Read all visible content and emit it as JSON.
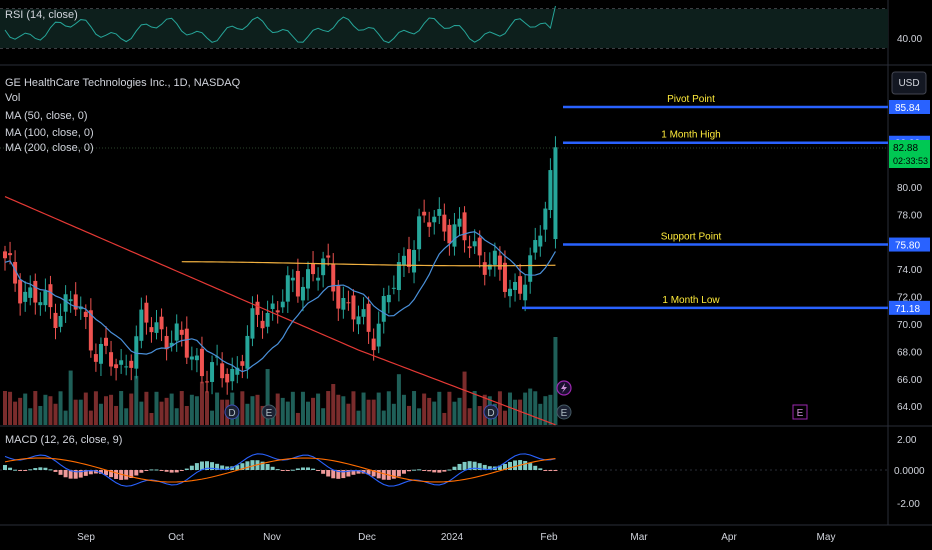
{
  "panes": {
    "rsi": {
      "label": "RSI (14, close)",
      "tick": "40.00"
    },
    "macd": {
      "label": "MACD (12, 26, close, 9)",
      "ticks": [
        "2.00",
        "0.0000",
        "-2.00"
      ]
    }
  },
  "legend": {
    "title": "GE HealthCare Technologies Inc., 1D, NASDAQ",
    "vol": "Vol",
    "ma50": "MA (50, close, 0)",
    "ma100": "MA (100, close, 0)",
    "ma200": "MA (200, close, 0)"
  },
  "currency_button": "USD",
  "colors": {
    "up": "#26a69a",
    "down": "#ef5350",
    "ma50": "#4a90d9",
    "ma100": "#e53935",
    "ma200": "#f0b040",
    "level": "#2962ff",
    "level_text": "#ffeb3b",
    "price_tag": "#00c853"
  },
  "levels": [
    {
      "name": "Pivot Point",
      "value": "85.84"
    },
    {
      "name": "1 Month High",
      "value": "83.23"
    },
    {
      "name": "Support Point",
      "value": "75.80"
    },
    {
      "name": "1 Month Low",
      "value": "71.18"
    }
  ],
  "last_price": {
    "value": "82.88",
    "countdown": "02:33:53"
  },
  "price_ticks": [
    "80.00",
    "78.00",
    "74.00",
    "72.00",
    "70.00",
    "68.00",
    "66.00",
    "64.00"
  ],
  "x_ticks": [
    "Sep",
    "Oct",
    "Nov",
    "Dec",
    "2024",
    "Feb",
    "Mar",
    "Apr",
    "May"
  ],
  "markers": [
    {
      "type": "D",
      "kind": "dividend"
    },
    {
      "type": "E",
      "kind": "earnings"
    },
    {
      "type": "D",
      "kind": "dividend"
    },
    {
      "type": "E",
      "kind": "earnings"
    },
    {
      "type": "E",
      "kind": "earnings-upcoming"
    }
  ],
  "chart_data": {
    "type": "candlestick",
    "title": "GE HealthCare Technologies Inc., 1D, NASDAQ",
    "x_range": [
      "Aug 2023",
      "May 2024"
    ],
    "y_range": [
      63,
      87
    ],
    "close_series_approx": [
      [
        "2023-08-21",
        74.2
      ],
      [
        "2023-08-28",
        72.2
      ],
      [
        "2023-09-05",
        71.0
      ],
      [
        "2023-09-12",
        71.6
      ],
      [
        "2023-09-19",
        68.3
      ],
      [
        "2023-09-26",
        66.4
      ],
      [
        "2023-10-03",
        70.0
      ],
      [
        "2023-10-10",
        69.5
      ],
      [
        "2023-10-17",
        68.0
      ],
      [
        "2023-10-24",
        66.3
      ],
      [
        "2023-10-31",
        66.5
      ],
      [
        "2023-11-07",
        70.5
      ],
      [
        "2023-11-14",
        71.6
      ],
      [
        "2023-11-21",
        73.5
      ],
      [
        "2023-11-28",
        74.0
      ],
      [
        "2023-12-05",
        71.0
      ],
      [
        "2023-12-12",
        69.3
      ],
      [
        "2023-12-19",
        73.0
      ],
      [
        "2023-12-26",
        77.0
      ],
      [
        "2024-01-02",
        77.8
      ],
      [
        "2024-01-09",
        76.2
      ],
      [
        "2024-01-16",
        74.8
      ],
      [
        "2024-01-23",
        72.5
      ],
      [
        "2024-01-30",
        74.0
      ],
      [
        "2024-02-06",
        82.9
      ]
    ],
    "ma200_approx": 74.4,
    "rsi_reference": 40.0,
    "macd_range": [
      -3,
      3
    ]
  }
}
